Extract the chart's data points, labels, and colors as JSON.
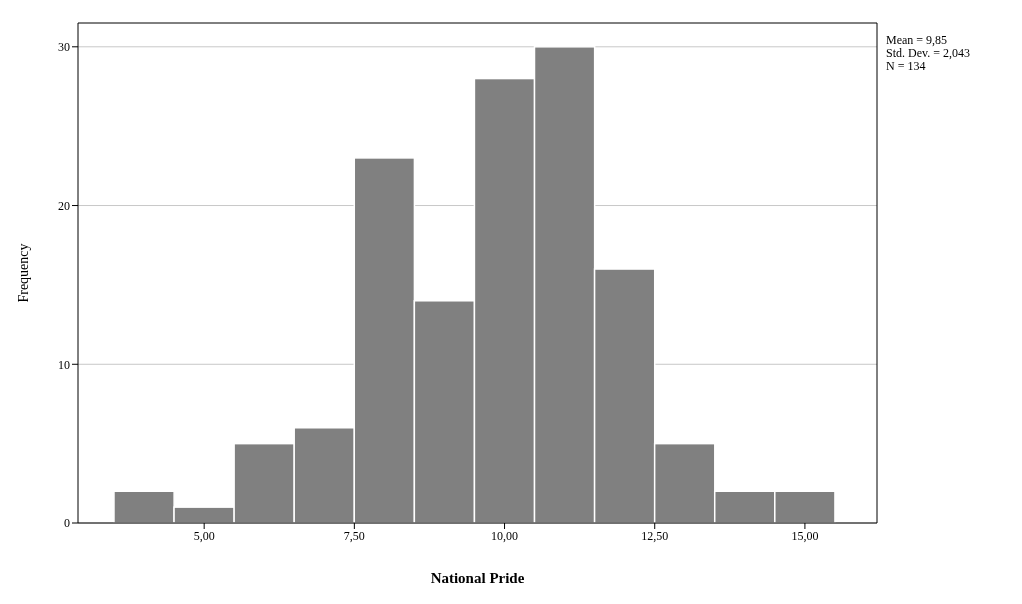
{
  "chart_data": {
    "type": "histogram",
    "xlabel": "National Pride",
    "ylabel": "Frequency",
    "bins": [
      3.5,
      4.5,
      5.5,
      6.5,
      7.5,
      8.5,
      9.5,
      10.5,
      11.5,
      12.5,
      13.5,
      14.5,
      15.5
    ],
    "values": [
      2,
      1,
      5,
      6,
      23,
      14,
      28,
      30,
      16,
      5,
      2,
      2
    ],
    "color": "#808080",
    "xlim": [
      2.9,
      16.2
    ],
    "xticks": [
      {
        "value": 5,
        "label": "5,00"
      },
      {
        "value": 7.5,
        "label": "7,50"
      },
      {
        "value": 10,
        "label": "10,00"
      },
      {
        "value": 12.5,
        "label": "12,50"
      },
      {
        "value": 15,
        "label": "15,00"
      }
    ],
    "ylim": [
      0,
      31.5
    ],
    "yticks": [
      0,
      10,
      20,
      30
    ],
    "grid": "y",
    "annotations": [
      "Mean = 9,85",
      "Std. Dev. = 2,043",
      "N = 134"
    ]
  }
}
